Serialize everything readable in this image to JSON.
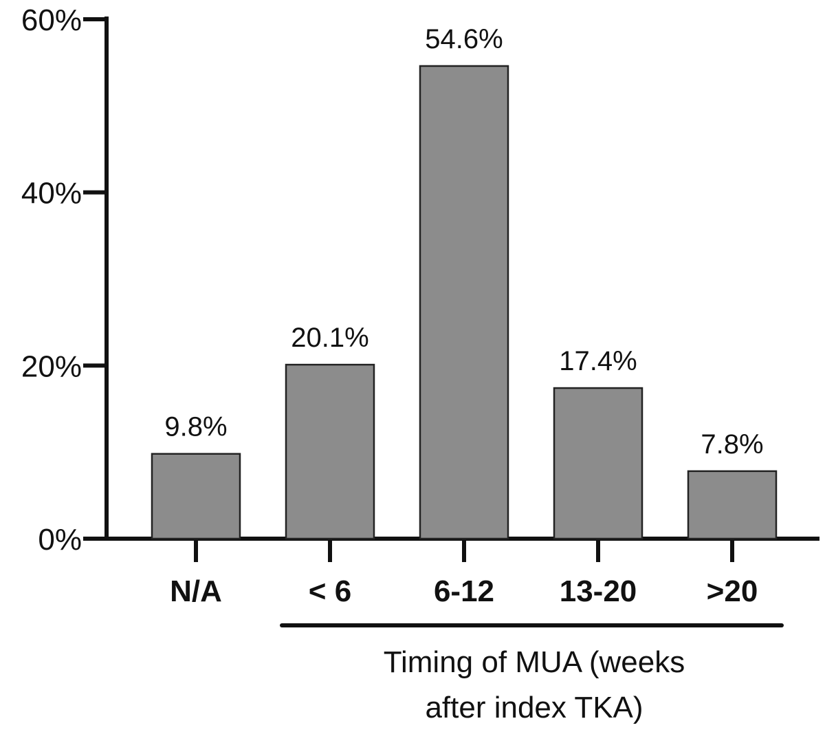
{
  "chart_data": {
    "type": "bar",
    "categories": [
      "N/A",
      "< 6",
      "6-12",
      "13-20",
      ">20"
    ],
    "values": [
      9.8,
      20.1,
      54.6,
      17.4,
      7.8
    ],
    "data_labels": [
      "9.8%",
      "20.1%",
      "54.6%",
      "17.4%",
      "7.8%"
    ],
    "title": "",
    "xlabel": "Timing of MUA (weeks after index TKA)",
    "xlabel_lines": [
      "Timing of MUA (weeks",
      "after index TKA)"
    ],
    "ylabel": "",
    "ylim": [
      0,
      60
    ],
    "yticks": [
      0,
      20,
      40,
      60
    ],
    "ytick_labels": [
      "0%",
      "20%",
      "40%",
      "60%"
    ],
    "bracket_over": [
      "< 6",
      "6-12",
      "13-20",
      ">20"
    ],
    "grid": false,
    "bar_color": "#8c8c8c",
    "bar_edge_color": "#222222",
    "axis_color": "#111111"
  }
}
